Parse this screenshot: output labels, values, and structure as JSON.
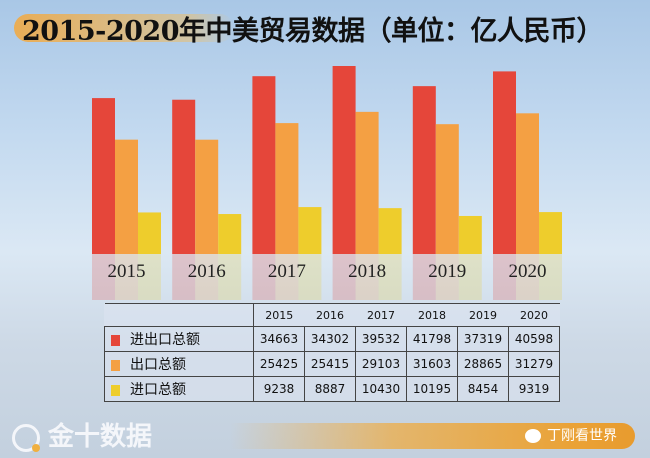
{
  "title": "2015-2020年中美贸易数据（单位：亿人民币）",
  "chart_data": {
    "type": "bar",
    "title": "2015-2020年中美贸易数据（单位：亿人民币）",
    "categories": [
      "2015",
      "2016",
      "2017",
      "2018",
      "2019",
      "2020"
    ],
    "series": [
      {
        "name": "进出口总额",
        "color": "#e5463a",
        "values": [
          34663,
          34302,
          39532,
          41798,
          37319,
          40598
        ]
      },
      {
        "name": "出口总额",
        "color": "#f4a043",
        "values": [
          25425,
          25415,
          29103,
          31603,
          28865,
          31279
        ]
      },
      {
        "name": "进口总额",
        "color": "#eecd2c",
        "values": [
          9238,
          8887,
          10430,
          10195,
          8454,
          9319
        ]
      }
    ],
    "xlabel": "",
    "ylabel": "亿人民币",
    "ylim": [
      0,
      42000
    ],
    "grid": false,
    "legend": "table-below"
  },
  "table": {
    "headers": [
      "2015",
      "2016",
      "2017",
      "2018",
      "2019",
      "2020"
    ]
  },
  "footer": {
    "logo_text": "金十数据",
    "watermark": "丁刚看世界"
  }
}
